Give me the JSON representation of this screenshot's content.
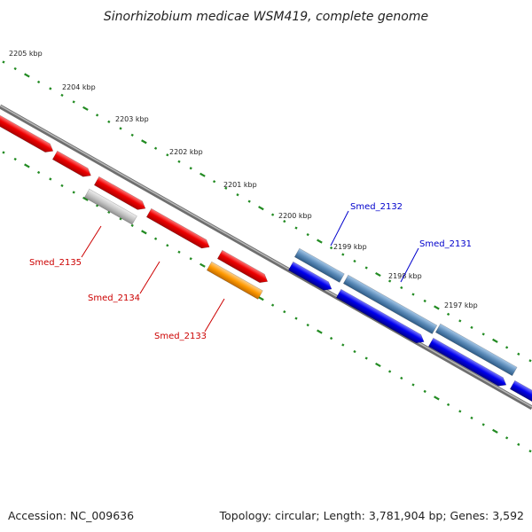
{
  "title": "Sinorhizobium medicae WSM419, complete genome",
  "footer": {
    "accession": "Accession: NC_009636",
    "summary": "Topology: circular; Length: 3,781,904 bp; Genes: 3,592"
  },
  "scale_labels": [
    "2205 kbp",
    "2204 kbp",
    "2203 kbp",
    "2202 kbp",
    "2201 kbp",
    "2200 kbp",
    "2199 kbp",
    "2198 kbp",
    "2197 kbp"
  ],
  "gene_labels": [
    {
      "text": "Smed_2135",
      "color": "#cc0000"
    },
    {
      "text": "Smed_2134",
      "color": "#cc0000"
    },
    {
      "text": "Smed_2133",
      "color": "#cc0000"
    },
    {
      "text": "Smed_2132",
      "color": "#0000cc"
    },
    {
      "text": "Smed_2131",
      "color": "#0000cc"
    }
  ],
  "colors": {
    "red": "#ee0000",
    "gray": "#c0c0c0",
    "orange": "#ff9900",
    "steelblue": "#5a8ab8",
    "blue": "#0000ee",
    "scale": "#228b22",
    "backbone": "#808080"
  }
}
